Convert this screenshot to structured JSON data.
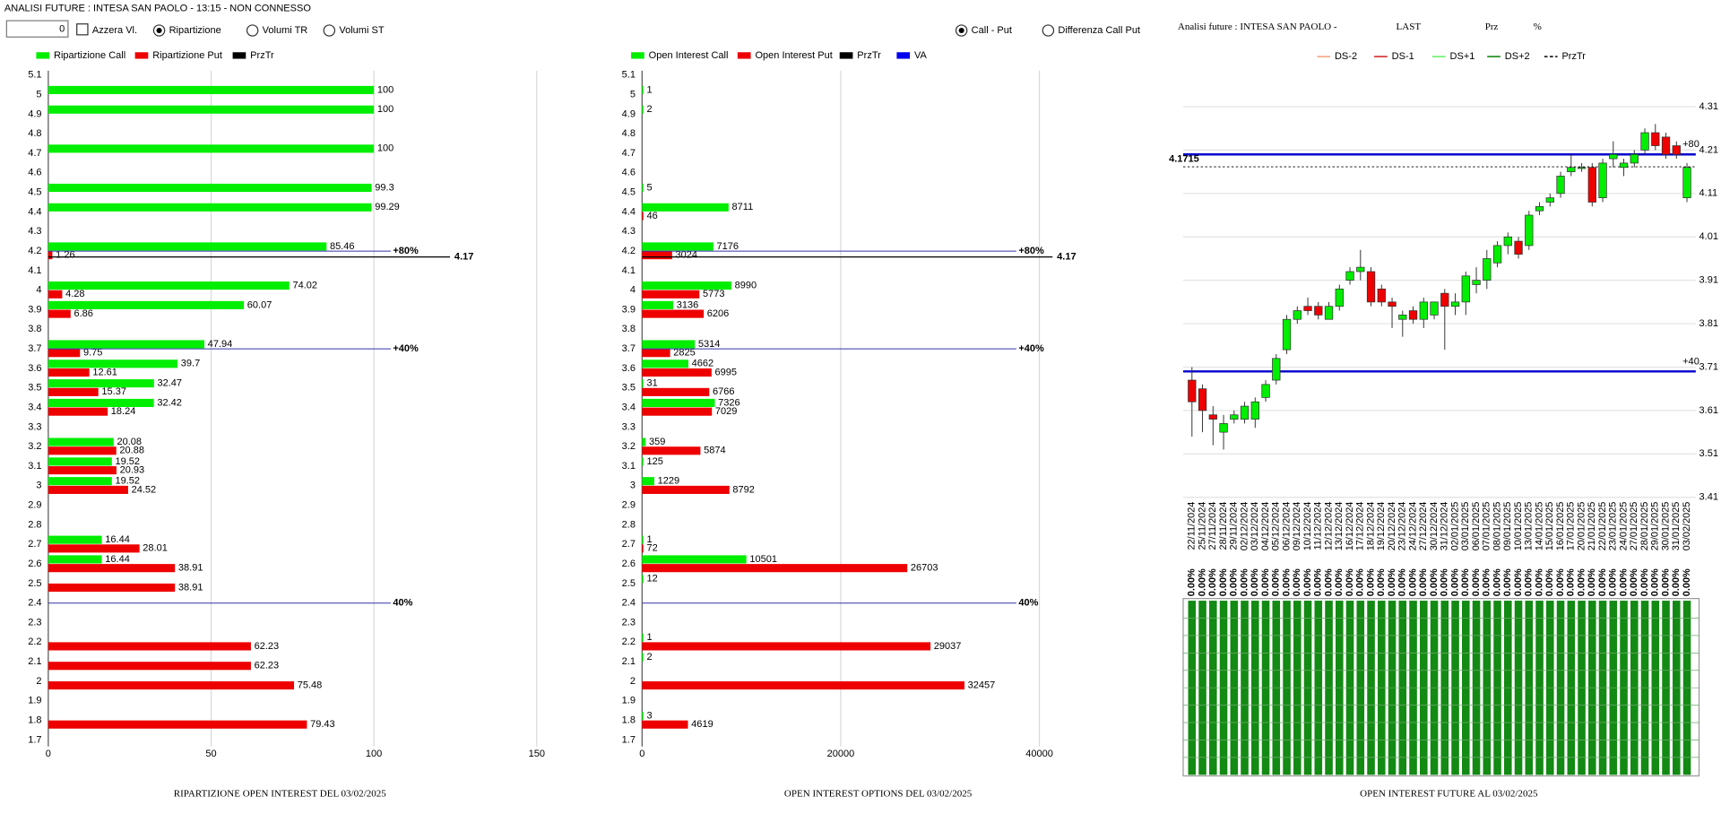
{
  "toolbar": {
    "app_title": "ANALISI FUTURE : INTESA SAN PAOLO - 13:15 - NON CONNESSO",
    "counter": 0,
    "checkbox": {
      "label": "Azzera Vl.",
      "checked": false
    },
    "radios_left": [
      {
        "label": "Ripartizione",
        "checked": true
      },
      {
        "label": "Volumi TR",
        "checked": false
      },
      {
        "label": "Volumi ST",
        "checked": false
      }
    ],
    "radios_right": [
      {
        "label": "Call - Put",
        "checked": true
      },
      {
        "label": "Differenza Call Put",
        "checked": false
      }
    ]
  },
  "chart_data": [
    {
      "type": "hbar",
      "title": "RIPARTIZIONE OPEN INTEREST DEL 03/02/2025",
      "categories": [
        "5.1",
        "5",
        "4.9",
        "4.8",
        "4.7",
        "4.6",
        "4.5",
        "4.4",
        "4.3",
        "4.2",
        "4.1",
        "4",
        "3.9",
        "3.8",
        "3.7",
        "3.6",
        "3.5",
        "3.4",
        "3.3",
        "3.2",
        "3.1",
        "3",
        "2.9",
        "2.8",
        "2.7",
        "2.6",
        "2.5",
        "2.4",
        "2.3",
        "2.2",
        "2.1",
        "2",
        "1.9",
        "1.8",
        "1.7"
      ],
      "ylim": [
        1.7,
        5.1
      ],
      "xlim": [
        0,
        150
      ],
      "xticks": [
        0,
        50,
        100,
        150
      ],
      "grid": true,
      "series": [
        {
          "name": "Ripartizione Call",
          "color": "#00ee00",
          "values": [
            null,
            100,
            100,
            null,
            100,
            null,
            99.3,
            99.29,
            null,
            85.46,
            null,
            74.02,
            60.07,
            null,
            47.94,
            39.7,
            32.47,
            32.42,
            null,
            20.08,
            19.52,
            19.52,
            null,
            null,
            16.44,
            16.44,
            null,
            null,
            null,
            null,
            null,
            null,
            null,
            null,
            null
          ]
        },
        {
          "name": "Ripartizione Put",
          "color": "#ee0000",
          "values": [
            null,
            null,
            null,
            null,
            null,
            null,
            null,
            null,
            null,
            1.26,
            null,
            4.28,
            6.86,
            null,
            9.75,
            12.61,
            15.37,
            18.24,
            null,
            20.88,
            20.93,
            24.52,
            null,
            null,
            28.01,
            38.91,
            38.91,
            null,
            null,
            62.23,
            62.23,
            75.48,
            null,
            79.43,
            null
          ]
        }
      ],
      "legend_extra": [
        {
          "name": "PrzTr",
          "color": "#000000"
        }
      ],
      "levels": [
        {
          "label": "+80%",
          "value": 4.2
        },
        {
          "label": "+40%",
          "value": 3.7
        },
        {
          "label": "40%",
          "value": 2.4
        }
      ],
      "level_color": "#3333aa",
      "przTr": 4.17
    },
    {
      "type": "hbar",
      "title": "OPEN INTEREST OPTIONS DEL 03/02/2025",
      "categories": [
        "5.1",
        "5",
        "4.9",
        "4.8",
        "4.7",
        "4.6",
        "4.5",
        "4.4",
        "4.3",
        "4.2",
        "4.1",
        "4",
        "3.9",
        "3.8",
        "3.7",
        "3.6",
        "3.5",
        "3.4",
        "3.3",
        "3.2",
        "3.1",
        "3",
        "2.9",
        "2.8",
        "2.7",
        "2.6",
        "2.5",
        "2.4",
        "2.3",
        "2.2",
        "2.1",
        "2",
        "1.9",
        "1.8",
        "1.7"
      ],
      "ylim": [
        1.7,
        5.1
      ],
      "xlim": [
        0,
        40000
      ],
      "xticks": [
        0,
        20000,
        40000
      ],
      "grid": true,
      "series": [
        {
          "name": "Open Interest Call",
          "color": "#00ee00",
          "values": [
            null,
            1,
            2,
            null,
            null,
            null,
            5,
            8711,
            null,
            7176,
            null,
            8990,
            3136,
            null,
            5314,
            4662,
            31,
            7326,
            null,
            359,
            125,
            1229,
            null,
            null,
            1,
            10501,
            12,
            null,
            null,
            1,
            2,
            null,
            null,
            3,
            null
          ]
        },
        {
          "name": "Open Interest Put",
          "color": "#ee0000",
          "values": [
            null,
            null,
            null,
            null,
            null,
            null,
            null,
            46,
            null,
            3024,
            null,
            5773,
            6206,
            null,
            2825,
            6995,
            6766,
            7029,
            null,
            5874,
            null,
            8792,
            null,
            null,
            72,
            26703,
            null,
            null,
            null,
            29037,
            null,
            32457,
            null,
            4619,
            null
          ]
        }
      ],
      "legend_extra": [
        {
          "name": "PrzTr",
          "color": "#000000"
        },
        {
          "name": "VA",
          "color": "#0000ee"
        }
      ],
      "levels": [
        {
          "label": "+80%",
          "value": 4.2
        },
        {
          "label": "+40%",
          "value": 3.7
        },
        {
          "label": "40%",
          "value": 2.4
        }
      ],
      "level_color": "#3333aa",
      "przTr": 4.17
    },
    {
      "type": "candlestick",
      "title": "OPEN INTEREST FUTURE AL 03/02/2025",
      "heading": [
        "Analisi future : INTESA SAN PAOLO -",
        "LAST",
        "Prz",
        "%"
      ],
      "legend": [
        {
          "name": "DS-2",
          "color": "#f4a582"
        },
        {
          "name": "DS-1",
          "color": "#d62728"
        },
        {
          "name": "DS+1",
          "color": "#66ee66"
        },
        {
          "name": "DS+2",
          "color": "#118811"
        },
        {
          "name": "PrzTr",
          "color": "#000000",
          "dashed": true
        }
      ],
      "x": [
        "22/11/2024",
        "25/11/2024",
        "27/11/2024",
        "28/11/2024",
        "29/11/2024",
        "02/12/2024",
        "03/12/2024",
        "04/12/2024",
        "05/12/2024",
        "06/12/2024",
        "09/12/2024",
        "10/12/2024",
        "11/12/2024",
        "12/12/2024",
        "13/12/2024",
        "16/12/2024",
        "17/12/2024",
        "18/12/2024",
        "19/12/2024",
        "20/12/2024",
        "23/12/2024",
        "24/12/2024",
        "27/12/2024",
        "30/12/2024",
        "31/12/2024",
        "02/01/2025",
        "03/01/2025",
        "06/01/2025",
        "07/01/2025",
        "08/01/2025",
        "09/01/2025",
        "10/01/2025",
        "13/01/2025",
        "14/01/2025",
        "15/01/2025",
        "16/01/2025",
        "17/01/2025",
        "20/01/2025",
        "21/01/2025",
        "22/01/2025",
        "23/01/2025",
        "24/01/2025",
        "27/01/2025",
        "28/01/2025",
        "29/01/2025",
        "30/01/2025",
        "31/01/2025",
        "03/02/2025"
      ],
      "open": [
        3.68,
        3.66,
        3.6,
        3.56,
        3.59,
        3.59,
        3.59,
        3.64,
        3.68,
        3.75,
        3.82,
        3.85,
        3.85,
        3.82,
        3.85,
        3.91,
        3.93,
        3.93,
        3.89,
        3.86,
        3.82,
        3.84,
        3.82,
        3.83,
        3.88,
        3.85,
        3.86,
        3.9,
        3.91,
        3.95,
        3.99,
        4.0,
        3.99,
        4.07,
        4.09,
        4.11,
        4.16,
        4.17,
        4.17,
        4.1,
        4.19,
        4.17,
        4.18,
        4.21,
        4.25,
        4.24,
        4.22,
        4.1
      ],
      "high": [
        3.71,
        3.67,
        3.62,
        3.6,
        3.61,
        3.63,
        3.64,
        3.68,
        3.74,
        3.83,
        3.85,
        3.87,
        3.86,
        3.86,
        3.9,
        3.94,
        3.98,
        3.94,
        3.9,
        3.87,
        3.84,
        3.85,
        3.87,
        3.86,
        3.89,
        3.88,
        3.93,
        3.94,
        3.98,
        4.0,
        4.02,
        4.01,
        4.07,
        4.09,
        4.11,
        4.16,
        4.2,
        4.18,
        4.18,
        4.19,
        4.23,
        4.19,
        4.21,
        4.26,
        4.27,
        4.25,
        4.23,
        4.18
      ],
      "low": [
        3.55,
        3.56,
        3.53,
        3.52,
        3.58,
        3.58,
        3.57,
        3.63,
        3.67,
        3.74,
        3.81,
        3.83,
        3.82,
        3.82,
        3.84,
        3.9,
        3.91,
        3.85,
        3.85,
        3.8,
        3.78,
        3.81,
        3.8,
        3.82,
        3.75,
        3.83,
        3.83,
        3.88,
        3.89,
        3.94,
        3.97,
        3.96,
        3.98,
        4.06,
        4.08,
        4.1,
        4.15,
        4.16,
        4.08,
        4.09,
        4.17,
        4.15,
        4.17,
        4.2,
        4.21,
        4.19,
        4.19,
        4.09
      ],
      "close": [
        3.63,
        3.61,
        3.59,
        3.58,
        3.6,
        3.62,
        3.63,
        3.67,
        3.73,
        3.82,
        3.84,
        3.84,
        3.83,
        3.85,
        3.89,
        3.93,
        3.94,
        3.86,
        3.86,
        3.85,
        3.83,
        3.82,
        3.86,
        3.86,
        3.85,
        3.86,
        3.92,
        3.91,
        3.96,
        3.99,
        4.01,
        3.97,
        4.06,
        4.08,
        4.1,
        4.15,
        4.17,
        4.17,
        4.09,
        4.18,
        4.2,
        4.18,
        4.2,
        4.25,
        4.22,
        4.2,
        4.2,
        4.17
      ],
      "up_color": "#00ee00",
      "down_color": "#ee0000",
      "ylim": [
        3.41,
        4.31
      ],
      "yticks": [
        3.41,
        3.51,
        3.61,
        3.71,
        3.81,
        3.91,
        4.01,
        4.11,
        4.21,
        4.31
      ],
      "grid": true,
      "levels": [
        {
          "label": "+80",
          "value": 4.2
        },
        {
          "label": "+40",
          "value": 3.7
        }
      ],
      "level_color": "#0000cc",
      "przTr": 4.1715,
      "percent_labels": [
        "0.00%",
        "0.00%",
        "0.00%",
        "0.00%",
        "0.00%",
        "0.00%",
        "0.00%",
        "0.00%",
        "0.00%",
        "0.00%",
        "0.00%",
        "0.00%",
        "0.00%",
        "0.00%",
        "0.00%",
        "0.00%",
        "0.00%",
        "0.00%",
        "0.00%",
        "0.00%",
        "0.00%",
        "0.00%",
        "0.00%",
        "0.00%",
        "0.00%",
        "0.00%",
        "0.00%",
        "0.00%",
        "0.00%",
        "0.00%",
        "0.00%",
        "0.00%",
        "0.00%",
        "0.00%",
        "0.00%",
        "0.00%",
        "0.00%",
        "0.00%",
        "0.00%",
        "0.00%",
        "0.00%",
        "0.00%",
        "0.00%",
        "0.00%",
        "0.00%",
        "0.00%",
        "0.00%",
        "0.00%"
      ],
      "bar_color": "#138a13"
    }
  ]
}
